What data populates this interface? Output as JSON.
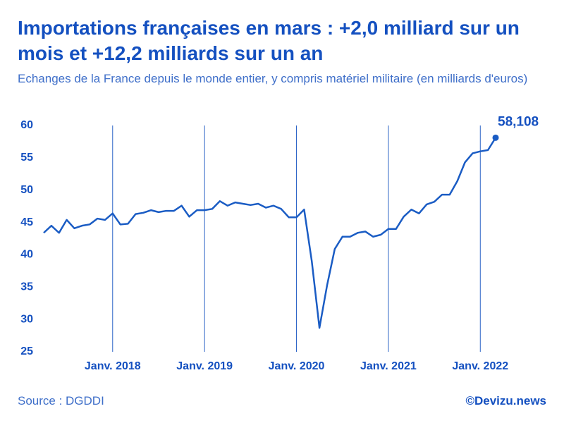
{
  "chart_data": {
    "type": "line",
    "title": "Importations françaises en mars : +2,0 milliard sur un mois et +12,2 milliards sur un an",
    "subtitle": "Echanges de la France depuis le monde entier, y compris matériel militaire (en milliards d'euros)",
    "source": "Source : DGDDI",
    "credit": "©Devizu.news",
    "categories": [
      null,
      null,
      null,
      null,
      null,
      null,
      null,
      null,
      null,
      "Janv. 2018",
      null,
      null,
      null,
      null,
      null,
      null,
      null,
      null,
      null,
      null,
      null,
      "Janv. 2019",
      null,
      null,
      null,
      null,
      null,
      null,
      null,
      null,
      null,
      null,
      null,
      "Janv. 2020",
      null,
      null,
      null,
      null,
      null,
      null,
      null,
      null,
      null,
      null,
      null,
      "Janv. 2021",
      null,
      null,
      null,
      null,
      null,
      null,
      null,
      null,
      null,
      null,
      null,
      "Janv. 2022",
      null,
      null
    ],
    "series": [
      {
        "name": "Importations",
        "color": "#1a5cc4",
        "values": [
          43.4,
          44.5,
          43.4,
          45.4,
          44.1,
          44.5,
          44.7,
          45.6,
          45.4,
          46.4,
          44.7,
          44.8,
          46.3,
          46.5,
          46.9,
          46.6,
          46.8,
          46.8,
          47.6,
          45.9,
          46.9,
          46.9,
          47.1,
          48.3,
          47.6,
          48.1,
          47.9,
          47.7,
          47.9,
          47.3,
          47.6,
          47.1,
          45.8,
          45.8,
          47.0,
          39.0,
          28.7,
          35.3,
          40.9,
          42.8,
          42.8,
          43.4,
          43.6,
          42.8,
          43.1,
          44.0,
          44.0,
          45.9,
          47.0,
          46.4,
          47.8,
          48.2,
          49.3,
          49.3,
          51.4,
          54.3,
          55.7,
          56.0,
          56.2,
          58.108
        ],
        "value_labels": [
          null,
          null,
          null,
          null,
          null,
          null,
          null,
          null,
          null,
          null,
          null,
          null,
          null,
          null,
          null,
          null,
          null,
          null,
          null,
          null,
          null,
          null,
          null,
          null,
          null,
          null,
          null,
          null,
          null,
          null,
          null,
          null,
          null,
          null,
          null,
          null,
          null,
          null,
          null,
          null,
          null,
          null,
          null,
          null,
          null,
          null,
          null,
          null,
          null,
          null,
          null,
          null,
          null,
          null,
          null,
          null,
          null,
          null,
          null,
          "58,108"
        ]
      }
    ],
    "ylim": [
      25,
      60
    ],
    "yticks": [
      25,
      30,
      35,
      40,
      45,
      50,
      55,
      60
    ],
    "grid": "x-labeled"
  }
}
